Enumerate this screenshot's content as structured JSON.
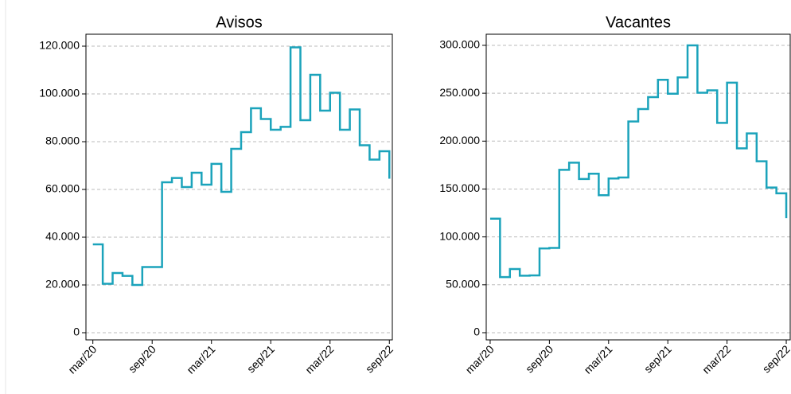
{
  "chart_data": [
    {
      "type": "line",
      "title": "Avisos",
      "color": "#1ba3bb",
      "step": true,
      "grid": true,
      "x": [
        0,
        1,
        2,
        3,
        4,
        5,
        6,
        7,
        8,
        9,
        10,
        11,
        12,
        13,
        14,
        15,
        16,
        17,
        18,
        19,
        20,
        21,
        22,
        23,
        24,
        25,
        26,
        27,
        28,
        29,
        30
      ],
      "series": [
        {
          "color": "#1ba3bb",
          "values": [
            37000,
            20500,
            25000,
            23800,
            20000,
            27500,
            27500,
            63000,
            64800,
            61000,
            67000,
            62000,
            70700,
            59000,
            77000,
            84000,
            94000,
            89500,
            85000,
            86200,
            119500,
            89000,
            108000,
            93000,
            100500,
            85000,
            93500,
            78500,
            72500,
            76000,
            64500
          ]
        }
      ],
      "xlim": [
        -0.7,
        30.3
      ],
      "xticks": [
        {
          "value": 0,
          "label": "mar/20"
        },
        {
          "value": 6,
          "label": "sep/20"
        },
        {
          "value": 12,
          "label": "mar/21"
        },
        {
          "value": 18,
          "label": "sep/21"
        },
        {
          "value": 24,
          "label": "mar/22"
        },
        {
          "value": 30,
          "label": "sep/22"
        }
      ],
      "ylim": [
        -3000,
        125000
      ],
      "yticks": [
        0,
        {
          "value": 20000,
          "label": "20.000"
        },
        {
          "value": 40000,
          "label": "40.000"
        },
        {
          "value": 60000,
          "label": "60.000"
        },
        {
          "value": 80000,
          "label": "80.000"
        },
        {
          "value": 100000,
          "label": "100.000"
        },
        {
          "value": 120000,
          "label": "120.000"
        }
      ]
    },
    {
      "type": "line",
      "title": "Vacantes",
      "color": "#1ba3bb",
      "step": true,
      "grid": true,
      "x": [
        0,
        1,
        2,
        3,
        4,
        5,
        6,
        7,
        8,
        9,
        10,
        11,
        12,
        13,
        14,
        15,
        16,
        17,
        18,
        19,
        20,
        21,
        22,
        23,
        24,
        25,
        26,
        27,
        28,
        29,
        30
      ],
      "series": [
        {
          "color": "#1ba3bb",
          "values": [
            119000,
            58000,
            66500,
            59500,
            59800,
            88000,
            88500,
            170000,
            177500,
            160500,
            166000,
            143500,
            161000,
            162000,
            220500,
            233500,
            246000,
            264000,
            249500,
            266500,
            300000,
            250500,
            253000,
            219000,
            261000,
            192500,
            208000,
            179000,
            151500,
            145500,
            119500
          ]
        }
      ],
      "xlim": [
        -0.4,
        30.4
      ],
      "xticks": [
        {
          "value": 0,
          "label": "mar/20"
        },
        {
          "value": 6,
          "label": "sep/20"
        },
        {
          "value": 12,
          "label": "mar/21"
        },
        {
          "value": 18,
          "label": "sep/21"
        },
        {
          "value": 24,
          "label": "mar/22"
        },
        {
          "value": 30,
          "label": "sep/22"
        }
      ],
      "ylim": [
        -7500,
        311600
      ],
      "yticks": [
        0,
        {
          "value": 50000,
          "label": "50.000"
        },
        {
          "value": 100000,
          "label": "100.000"
        },
        {
          "value": 150000,
          "label": "150.000"
        },
        {
          "value": 200000,
          "label": "200.000"
        },
        {
          "value": 250000,
          "label": "250.000"
        },
        {
          "value": 300000,
          "label": "300.000"
        }
      ]
    }
  ]
}
